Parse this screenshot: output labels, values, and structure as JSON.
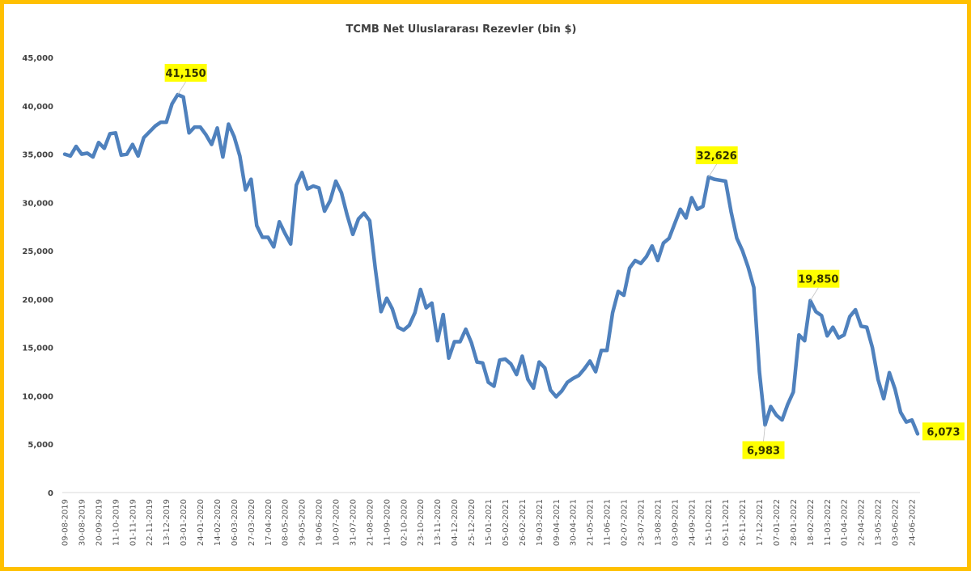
{
  "chart_data": {
    "type": "line",
    "title": "TCMB Net Uluslararası  Rezevler (bin $)",
    "xlabel": "",
    "ylabel": "",
    "ylim": [
      0,
      45000
    ],
    "yticks": [
      0,
      5000,
      10000,
      15000,
      20000,
      25000,
      30000,
      35000,
      40000,
      45000
    ],
    "ytick_labels": [
      "0",
      "5,000",
      "10,000",
      "15,000",
      "20,000",
      "25,000",
      "30,000",
      "35,000",
      "40,000",
      "45,000"
    ],
    "grid": false,
    "legend": "none",
    "x_tick_every": 3,
    "x_tick_labels": [
      "09-08-2019",
      "30-08-2019",
      "20-09-2019",
      "11-10-2019",
      "01-11-2019",
      "22-11-2019",
      "13-12-2019",
      "03-01-2020",
      "24-01-2020",
      "14-02-2020",
      "06-03-2020",
      "27-03-2020",
      "17-04-2020",
      "08-05-2020",
      "29-05-2020",
      "19-06-2020",
      "10-07-2020",
      "31-07-2020",
      "21-08-2020",
      "11-09-2020",
      "02-10-2020",
      "23-10-2020",
      "13-11-2020",
      "04-12-2020",
      "25-12-2020",
      "15-01-2021",
      "05-02-2021",
      "26-02-2021",
      "19-03-2021",
      "09-04-2021",
      "30-04-2021",
      "21-05-2021",
      "11-06-2021",
      "02-07-2021",
      "23-07-2021",
      "13-08-2021",
      "03-09-2021",
      "24-09-2021",
      "15-10-2021",
      "05-11-2021",
      "26-11-2021",
      "17-12-2021",
      "07-01-2022",
      "28-01-2022",
      "18-02-2022",
      "11-03-2022",
      "01-04-2022",
      "22-04-2022",
      "13-05-2022",
      "03-06-2022",
      "24-06-2022"
    ],
    "series": [
      {
        "name": "TCMB Net Uluslararası Rezervler",
        "color": "#4f81bd",
        "values": [
          35000,
          34800,
          35800,
          35000,
          35100,
          34700,
          36200,
          35600,
          37100,
          37200,
          34900,
          35000,
          36000,
          34800,
          36700,
          37300,
          37900,
          38300,
          38300,
          40200,
          41150,
          40900,
          37200,
          37800,
          37800,
          37000,
          36000,
          37700,
          34700,
          38100,
          36800,
          34800,
          31300,
          32400,
          27600,
          26400,
          26400,
          25400,
          28000,
          26800,
          25700,
          31800,
          33100,
          31400,
          31700,
          31500,
          29100,
          30200,
          32200,
          31000,
          28700,
          26700,
          28300,
          28900,
          28100,
          23100,
          18700,
          20100,
          19000,
          17100,
          16800,
          17300,
          18600,
          21000,
          19100,
          19600,
          15700,
          18400,
          13900,
          15600,
          15600,
          16900,
          15500,
          13500,
          13400,
          11400,
          11000,
          13700,
          13800,
          13300,
          12200,
          14100,
          11700,
          10800,
          13500,
          12900,
          10600,
          9900,
          10500,
          11400,
          11800,
          12100,
          12800,
          13600,
          12500,
          14700,
          14700,
          18600,
          20800,
          20400,
          23200,
          24000,
          23700,
          24400,
          25500,
          24000,
          25800,
          26300,
          27800,
          29300,
          28400,
          30500,
          29300,
          29600,
          32626,
          32400,
          32300,
          32200,
          29000,
          26300,
          25000,
          23300,
          21200,
          12500,
          6983,
          8900,
          8000,
          7500,
          9100,
          10400,
          16300,
          15700,
          19850,
          18700,
          18300,
          16200,
          17100,
          16000,
          16300,
          18200,
          18900,
          17200,
          17100,
          15000,
          11700,
          9700,
          12400,
          10700,
          8300,
          7300,
          7500,
          6073
        ]
      }
    ],
    "annotations": [
      {
        "index": 20,
        "label": "41,150",
        "position": "above"
      },
      {
        "index": 114,
        "label": "32,626",
        "position": "above"
      },
      {
        "index": 124,
        "label": "6,983",
        "position": "below"
      },
      {
        "index": 132,
        "label": "19,850",
        "position": "above"
      },
      {
        "index": 151,
        "label": "6,073",
        "position": "right"
      }
    ],
    "annotation_bg": "#ffff00",
    "frame_color": "#ffc000"
  }
}
